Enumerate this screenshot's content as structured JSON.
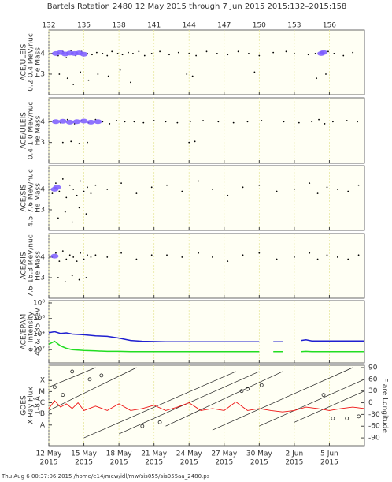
{
  "title": "Bartels Rotation 2480    12 May 2015 through 7 Jun 2015    2015:132–2015:158",
  "footer": "Thu Aug  6 00:37:06 2015    /home/e14/mew/idl/mw/sis055/sis055aa_2480.ps",
  "x_axis": {
    "xlim": [
      132,
      159
    ],
    "top_ticks": [
      132,
      135,
      138,
      141,
      144,
      147,
      150,
      153,
      156
    ],
    "xticks": [
      {
        "value": 132,
        "label": "12 May"
      },
      {
        "value": 135,
        "label": "15 May"
      },
      {
        "value": 138,
        "label": "18 May"
      },
      {
        "value": 141,
        "label": "21 May"
      },
      {
        "value": 144,
        "label": "24 May"
      },
      {
        "value": 147,
        "label": "27 May"
      },
      {
        "value": 150,
        "label": "30 May"
      },
      {
        "value": 153,
        "label": "2 Jun"
      },
      {
        "value": 156,
        "label": "5 Jun"
      }
    ],
    "year": "2015"
  },
  "chart_data": [
    {
      "type": "scatter",
      "ylabel": [
        "ACE/ULEIS",
        "0.2-0.4 MeV/nuc",
        "He Mass"
      ],
      "ylim": [
        2,
        5.15
      ],
      "yticks": [
        3,
        4
      ],
      "color": "#000000",
      "core_color": "#7b5cff",
      "x": [
        132.3,
        132.8,
        133.2,
        133.5,
        133.9,
        134.3,
        134.8,
        135.3,
        135.7,
        136.1,
        136.6,
        137.0,
        137.4,
        137.9,
        138.3,
        138.8,
        139.2,
        139.7,
        140.2,
        140.8,
        141.5,
        142.3,
        143.1,
        144.0,
        144.6,
        145.5,
        146.4,
        147.3,
        148.2,
        149.1,
        150.0,
        151.2,
        152.3,
        153.0,
        154.2,
        154.8,
        155.9,
        156.4,
        157.2,
        158.0,
        132.9,
        133.6,
        134.1,
        134.7,
        135.4,
        136.2,
        137.1,
        138.1,
        139.0,
        143.8,
        144.3,
        149.6,
        154.9,
        155.7
      ],
      "y": [
        4.0,
        3.9,
        4.1,
        3.8,
        4.15,
        3.9,
        4.1,
        4.0,
        3.95,
        4.05,
        4.0,
        3.9,
        4.1,
        4.0,
        3.95,
        4.05,
        4.0,
        4.1,
        3.9,
        4.0,
        4.1,
        3.95,
        4.05,
        4.0,
        3.9,
        4.1,
        4.0,
        3.95,
        4.1,
        4.0,
        3.9,
        4.05,
        4.1,
        4.0,
        3.95,
        4.0,
        4.1,
        4.0,
        3.9,
        4.05,
        3.0,
        2.8,
        2.5,
        3.1,
        2.7,
        3.0,
        2.9,
        3.2,
        2.6,
        3.0,
        2.9,
        3.1,
        2.8,
        3.0
      ],
      "core_x": [
        132.6,
        133.0,
        133.4,
        133.8,
        134.2,
        134.6,
        135.0,
        155.3,
        155.5
      ],
      "core_y": [
        4.0,
        4.05,
        3.98,
        4.02,
        4.0,
        4.03,
        3.97,
        4.0,
        4.05
      ]
    },
    {
      "type": "scatter",
      "ylabel": [
        "ACE/ULEIS",
        "0.4-1.0 MeV/nuc",
        "He Mass"
      ],
      "ylim": [
        2,
        5.15
      ],
      "yticks": [
        3,
        4
      ],
      "color": "#000000",
      "core_color": "#7b5cff",
      "x": [
        132.4,
        133.0,
        133.6,
        134.2,
        134.8,
        135.4,
        136.0,
        136.6,
        137.2,
        137.8,
        138.5,
        139.3,
        140.1,
        141.0,
        142.0,
        143.0,
        144.1,
        145.2,
        146.5,
        147.8,
        149.0,
        150.2,
        152.1,
        153.4,
        154.5,
        155.1,
        155.6,
        156.3,
        157.5,
        158.4,
        133.2,
        133.9,
        134.6,
        135.3,
        144.0,
        144.5
      ],
      "y": [
        4.05,
        3.95,
        4.1,
        3.9,
        4.05,
        3.95,
        4.1,
        4.0,
        3.9,
        4.05,
        4.0,
        4.0,
        3.95,
        4.05,
        4.0,
        3.95,
        4.0,
        4.05,
        4.0,
        3.95,
        4.0,
        4.05,
        4.0,
        3.95,
        4.0,
        4.1,
        3.9,
        4.0,
        4.05,
        4.0,
        3.0,
        3.05,
        2.95,
        3.0,
        3.0,
        3.05
      ],
      "core_x": [
        132.6,
        133.2,
        133.8,
        134.4,
        135.0,
        135.6,
        136.2
      ],
      "core_y": [
        4.0,
        4.02,
        3.98,
        4.0,
        4.03,
        3.98,
        4.0
      ]
    },
    {
      "type": "scatter",
      "ylabel": [
        "ACE/SIS",
        "4.5-7.6 MeV/nuc",
        "He Mass"
      ],
      "ylim": [
        2,
        5.15
      ],
      "yticks": [
        3,
        4
      ],
      "color": "#000000",
      "core_color": "#7b5cff",
      "x": [
        132.3,
        132.6,
        132.9,
        133.2,
        133.5,
        133.8,
        134.1,
        134.4,
        134.7,
        135.0,
        135.3,
        135.6,
        136.0,
        132.8,
        133.4,
        134.0,
        134.6,
        135.2,
        137.0,
        138.2,
        139.5,
        140.8,
        142.1,
        143.4,
        144.8,
        146.0,
        147.3,
        148.6,
        150.0,
        151.5,
        153.0,
        154.3,
        155.0,
        155.8,
        156.7,
        157.6,
        158.5
      ],
      "y": [
        3.8,
        4.3,
        3.9,
        4.5,
        3.6,
        4.2,
        4.0,
        3.7,
        4.4,
        3.9,
        4.1,
        3.8,
        4.2,
        2.6,
        2.9,
        2.4,
        3.1,
        2.8,
        4.0,
        4.3,
        3.8,
        4.1,
        4.2,
        3.9,
        4.4,
        4.0,
        3.7,
        4.1,
        4.2,
        3.9,
        4.0,
        4.3,
        3.8,
        4.1,
        4.0,
        3.9,
        4.2
      ],
      "core_x": [
        132.5,
        132.7
      ],
      "core_y": [
        4.0,
        4.1
      ]
    },
    {
      "type": "scatter",
      "ylabel": [
        "ACE/SIS",
        "7.6-16.3 MeV/nuc",
        "He Mass"
      ],
      "ylim": [
        2,
        5.15
      ],
      "yticks": [
        3,
        4
      ],
      "color": "#000000",
      "core_color": "#7b5cff",
      "x": [
        132.3,
        132.6,
        132.9,
        133.2,
        133.5,
        133.8,
        134.1,
        134.4,
        134.7,
        135.0,
        135.3,
        135.6,
        136.0,
        132.8,
        133.4,
        134.0,
        134.6,
        135.2,
        137.0,
        138.2,
        139.5,
        140.8,
        142.1,
        143.4,
        144.8,
        146.0,
        147.3,
        148.6,
        150.0,
        151.5,
        153.0,
        154.3,
        155.0,
        155.8,
        156.7,
        157.6,
        158.5
      ],
      "y": [
        4.0,
        4.2,
        3.8,
        4.3,
        3.9,
        4.1,
        4.0,
        3.8,
        4.2,
        3.9,
        4.1,
        4.0,
        4.1,
        3.0,
        2.8,
        3.1,
        2.9,
        3.0,
        4.0,
        4.2,
        3.9,
        4.1,
        4.1,
        4.0,
        4.2,
        4.0,
        3.8,
        4.1,
        4.2,
        3.9,
        4.0,
        4.2,
        3.9,
        4.1,
        4.0,
        3.9,
        4.1
      ],
      "core_x": [
        132.5
      ],
      "core_y": [
        4.05
      ]
    },
    {
      "type": "line",
      "ylabel": [
        "ACE/EPAM",
        "e- Intensity",
        "45 & 235 keV"
      ],
      "log": true,
      "ylim": [
        2,
        200000000
      ],
      "yticks": [
        {
          "value": 100,
          "label": "10²"
        },
        {
          "value": 10000,
          "label": "10⁴"
        },
        {
          "value": 1000000,
          "label": "10⁶"
        },
        {
          "value": 100000000,
          "label": "10⁸"
        }
      ],
      "x": [
        132,
        132.5,
        133,
        133.5,
        134,
        135,
        136,
        137,
        138,
        139,
        140,
        142,
        144,
        146,
        148,
        150,
        150.5,
        151.2,
        152,
        152.3,
        153.6,
        154,
        154.5,
        156,
        158,
        159
      ],
      "series": [
        {
          "color": "#1f1fd0",
          "values": [
            15000,
            20000,
            12000,
            14000,
            10000,
            8000,
            6000,
            5000,
            3000,
            1500,
            1200,
            1000,
            1000,
            1000,
            1000,
            1000,
            null,
            1000,
            1000,
            null,
            1500,
            1800,
            1300,
            1300,
            1300,
            1300
          ]
        },
        {
          "color": "#22dd22",
          "values": [
            500,
            1200,
            300,
            150,
            100,
            80,
            70,
            60,
            60,
            55,
            55,
            55,
            55,
            55,
            55,
            55,
            null,
            55,
            55,
            null,
            55,
            60,
            55,
            55,
            55,
            55
          ]
        }
      ]
    },
    {
      "type": "goes",
      "ylabel": [
        "GOES",
        "X-Ray Flux",
        "1-8 Å"
      ],
      "y2label": "Flare Longitude",
      "log": true,
      "ylim": [
        1.4e-10,
        0.0023
      ],
      "yticks": [
        {
          "value": 1e-08,
          "label": "A"
        },
        {
          "value": 1e-07,
          "label": "B"
        },
        {
          "value": 1e-06,
          "label": "C"
        },
        {
          "value": 1e-05,
          "label": "M"
        },
        {
          "value": 0.0001,
          "label": "X"
        }
      ],
      "y2lim": [
        -110,
        96
      ],
      "y2ticks": [
        -90,
        -60,
        -30,
        0,
        30,
        60,
        90
      ],
      "x": [
        132,
        132.5,
        133,
        133.5,
        134,
        134.5,
        135,
        136,
        137,
        138,
        139,
        140,
        141,
        142,
        143,
        144,
        145,
        146,
        147,
        148,
        149,
        150,
        151,
        152,
        153,
        154,
        155,
        156,
        157,
        158,
        159
      ],
      "values": [
        3e-07,
        1.5e-06,
        4e-07,
        8e-07,
        3e-07,
        1e-06,
        2e-07,
        5e-07,
        2e-07,
        8e-07,
        2e-07,
        3e-07,
        6e-07,
        2e-07,
        4e-07,
        1e-06,
        2e-07,
        3e-07,
        2e-07,
        1.2e-06,
        2e-07,
        3e-07,
        2e-07,
        1.5e-07,
        2e-07,
        4e-07,
        3e-07,
        2e-07,
        3e-07,
        4e-07,
        3e-07
      ],
      "color": "#ee1111",
      "tracks": [
        {
          "x": [
            132,
            139.5
          ],
          "values": [
            -20,
            90
          ]
        },
        {
          "x": [
            135,
            148
          ],
          "values": [
            -90,
            80
          ]
        },
        {
          "x": [
            138,
            150
          ],
          "values": [
            -80,
            80
          ]
        },
        {
          "x": [
            142,
            152
          ],
          "values": [
            -60,
            80
          ]
        },
        {
          "x": [
            146,
            158
          ],
          "values": [
            -70,
            90
          ]
        },
        {
          "x": [
            150,
            159
          ],
          "values": [
            -60,
            60
          ]
        },
        {
          "x": [
            153,
            159
          ],
          "values": [
            -50,
            30
          ]
        },
        {
          "x": [
            132,
            136
          ],
          "values": [
            40,
            90
          ]
        }
      ],
      "flares_x": [
        132.5,
        133.2,
        134.0,
        135.5,
        136.5,
        140,
        141.5,
        148.5,
        149,
        150.2,
        155.5,
        156.3,
        157.5,
        158.5
      ],
      "flares": [
        40,
        20,
        80,
        60,
        70,
        -60,
        -50,
        30,
        35,
        45,
        20,
        -40,
        -40,
        -35
      ]
    }
  ]
}
